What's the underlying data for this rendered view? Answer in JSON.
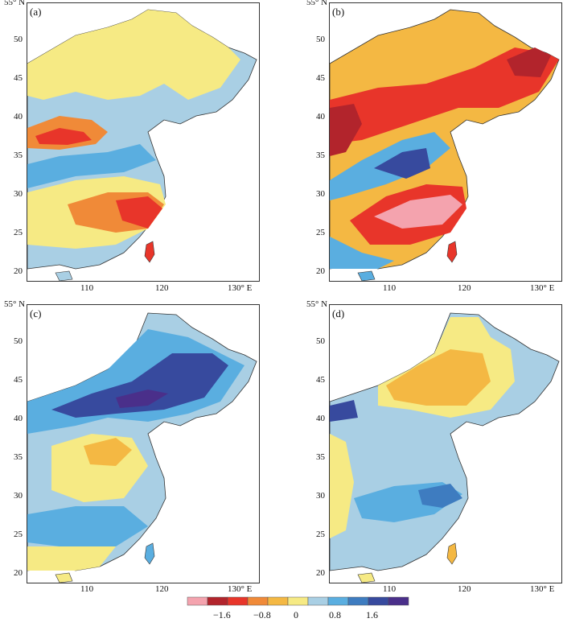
{
  "panels": [
    {
      "label": "(a)"
    },
    {
      "label": "(b)"
    },
    {
      "label": "(c)"
    },
    {
      "label": "(d)"
    }
  ],
  "axes": {
    "lat_top_label": "55° N",
    "lat_ticks": [
      "50",
      "45",
      "40",
      "35",
      "30",
      "25",
      "20"
    ],
    "lon_ticks": [
      "110",
      "120",
      "130° E"
    ]
  },
  "colorbar": {
    "colors": [
      "#f4a3ae",
      "#b2242c",
      "#e8352a",
      "#f08a38",
      "#f4b843",
      "#f6ea84",
      "#a9cfe4",
      "#5aaee0",
      "#3e7cc0",
      "#374a9e",
      "#4a2f8a"
    ],
    "labels": [
      "−1.6",
      "−0.8",
      "0",
      "0.8",
      "1.6"
    ]
  }
}
